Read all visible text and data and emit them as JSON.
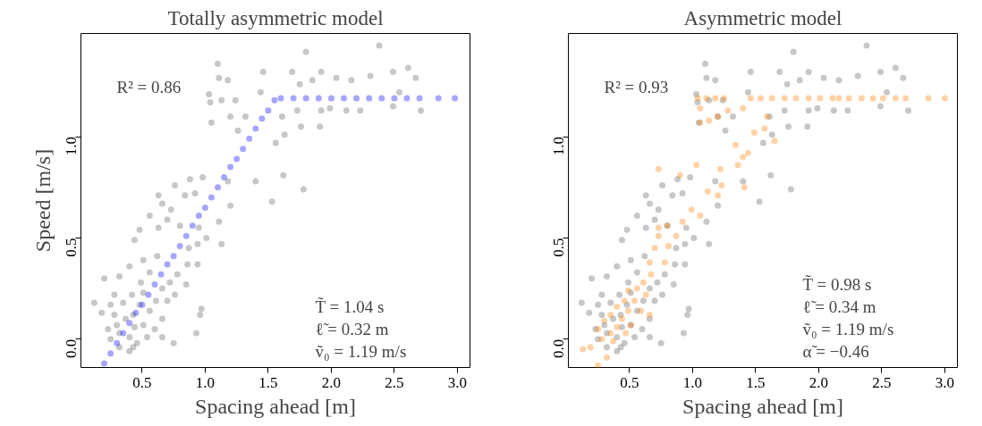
{
  "chart_data": [
    {
      "type": "scatter",
      "title": "Totally asymmetric model",
      "xlabel": "Spacing ahead [m]",
      "ylabel": "Speed [m/s]",
      "xlim": [
        0.015,
        3.1
      ],
      "ylim": [
        -0.14,
        1.51
      ],
      "xticks": [
        {
          "value": 0.5,
          "label": "0.5"
        },
        {
          "value": 1.0,
          "label": "1.0"
        },
        {
          "value": 1.5,
          "label": "1.5"
        },
        {
          "value": 2.0,
          "label": "2.0"
        },
        {
          "value": 2.5,
          "label": "2.5"
        },
        {
          "value": 3.0,
          "label": "3.0"
        }
      ],
      "yticks": [
        {
          "value": 0.0,
          "label": "0.0"
        },
        {
          "value": 0.5,
          "label": "0.5"
        },
        {
          "value": 1.0,
          "label": "1.0"
        }
      ],
      "grid": false,
      "marker": "circle",
      "annotations": [
        "R² = 0.86",
        "T̃ = 1.04 s",
        "ℓ̃ = 0.32 m",
        "ṽ₀ = 1.19 m/s"
      ],
      "series": [
        {
          "color": "#000000",
          "x": [
            1.1,
            1.8,
            2.38,
            1.46,
            1.69,
            1.92,
            2.31,
            2.61,
            2.67,
            1.11,
            1.18,
            1.03,
            1.04,
            1.13,
            1.24,
            1.44,
            1.75,
            1.85,
            2.04,
            2.16,
            2.49,
            2.54,
            2.71,
            2.49,
            2.23,
            2.12,
            1.99,
            1.92,
            1.73,
            1.61,
            1.76,
            1.91,
            1.32,
            1.2,
            1.05,
            1.26,
            1.56,
            1.63,
            1.62,
            1.78,
            1.53,
            1.4,
            1.2,
            1.18,
            0.88,
            0.98,
            0.92,
            0.84,
            0.76,
            0.63,
            0.66,
            0.73,
            0.56,
            0.7,
            0.8,
            0.63,
            0.48,
            0.44,
            1.01,
            1.11,
            1.13,
            0.95,
            0.94,
            0.87,
            0.94,
            0.86,
            0.78,
            0.85,
            0.72,
            0.76,
            0.62,
            0.51,
            0.4,
            0.32,
            0.2,
            0.12,
            0.18,
            0.25,
            0.28,
            0.35,
            0.42,
            0.49,
            0.56,
            0.66,
            0.7,
            0.66,
            0.56,
            0.48,
            0.43,
            0.37,
            0.3,
            0.23,
            0.25,
            0.32,
            0.4,
            0.44,
            0.51,
            0.6,
            0.66,
            0.75,
            0.54,
            0.46,
            0.4,
            0.32,
            0.43,
            0.97,
            0.96,
            0.93,
            0.51,
            0.61,
            0.28
          ],
          "values": [
            1.36,
            1.42,
            1.45,
            1.32,
            1.32,
            1.32,
            1.3,
            1.34,
            1.29,
            1.29,
            1.28,
            1.21,
            1.17,
            1.18,
            1.18,
            1.22,
            1.26,
            1.28,
            1.29,
            1.28,
            1.32,
            1.22,
            1.13,
            1.15,
            1.13,
            1.13,
            1.14,
            1.13,
            1.13,
            1.1,
            1.05,
            1.05,
            1.1,
            1.1,
            1.07,
            1.03,
            0.97,
            1.01,
            0.81,
            0.74,
            0.68,
            0.78,
            0.66,
            0.78,
            0.79,
            0.8,
            0.72,
            0.71,
            0.76,
            0.71,
            0.67,
            0.64,
            0.61,
            0.59,
            0.56,
            0.55,
            0.54,
            0.49,
            0.5,
            0.58,
            0.47,
            0.55,
            0.47,
            0.45,
            0.37,
            0.37,
            0.32,
            0.27,
            0.28,
            0.22,
            0.41,
            0.39,
            0.36,
            0.31,
            0.3,
            0.18,
            0.13,
            0.17,
            0.12,
            0.18,
            0.22,
            0.28,
            0.33,
            0.25,
            0.19,
            0.1,
            0.14,
            0.17,
            0.12,
            0.1,
            0.07,
            0.05,
            0.0,
            0.03,
            0.01,
            0.06,
            0.07,
            0.05,
            0.01,
            -0.02,
            0.01,
            -0.02,
            -0.06,
            -0.04,
            -0.04,
            0.15,
            0.12,
            0.03,
            0.23,
            0.19,
            0.22
          ]
        },
        {
          "color": "#0000ff",
          "x": [
            0.2,
            0.25,
            0.3,
            0.35,
            0.4,
            0.45,
            0.5,
            0.55,
            0.6,
            0.65,
            0.7,
            0.75,
            0.8,
            0.85,
            0.9,
            0.95,
            1.0,
            1.05,
            1.1,
            1.15,
            1.2,
            1.25,
            1.3,
            1.35,
            1.4,
            1.45,
            1.5,
            1.55,
            1.6,
            1.7,
            1.8,
            1.9,
            2.0,
            2.1,
            2.2,
            2.3,
            2.4,
            2.5,
            2.6,
            2.7,
            2.85,
            2.98
          ],
          "values": [
            -0.12,
            -0.07,
            -0.02,
            0.03,
            0.08,
            0.13,
            0.17,
            0.22,
            0.27,
            0.32,
            0.37,
            0.41,
            0.46,
            0.51,
            0.56,
            0.61,
            0.65,
            0.7,
            0.75,
            0.8,
            0.85,
            0.89,
            0.94,
            0.99,
            1.04,
            1.09,
            1.13,
            1.18,
            1.19,
            1.19,
            1.19,
            1.19,
            1.19,
            1.19,
            1.19,
            1.19,
            1.19,
            1.19,
            1.19,
            1.19,
            1.19,
            1.19
          ]
        }
      ]
    },
    {
      "type": "scatter",
      "title": "Asymmetric model",
      "xlabel": "Spacing ahead [m]",
      "xlim": [
        0.015,
        3.1
      ],
      "ylim": [
        -0.14,
        1.51
      ],
      "xticks": [
        {
          "value": 0.5,
          "label": "0.5"
        },
        {
          "value": 1.0,
          "label": "1.0"
        },
        {
          "value": 1.5,
          "label": "1.5"
        },
        {
          "value": 2.0,
          "label": "2.0"
        },
        {
          "value": 2.5,
          "label": "2.5"
        },
        {
          "value": 3.0,
          "label": "3.0"
        }
      ],
      "yticks": [
        {
          "value": 0.0,
          "label": "0.0"
        },
        {
          "value": 0.5,
          "label": "0.5"
        },
        {
          "value": 1.0,
          "label": "1.0"
        }
      ],
      "grid": false,
      "marker": "circle",
      "annotations": [
        "R² = 0.93",
        "T̃ = 0.98 s",
        "ℓ̃ = 0.34 m",
        "ṽ₀ = 1.19 m/s",
        "α̃ = −0.46"
      ],
      "series": [
        {
          "color": "#000000",
          "x": [
            1.1,
            1.8,
            2.38,
            1.46,
            1.69,
            1.92,
            2.31,
            2.61,
            2.67,
            1.11,
            1.18,
            1.03,
            1.04,
            1.13,
            1.24,
            1.44,
            1.75,
            1.85,
            2.04,
            2.16,
            2.49,
            2.54,
            2.71,
            2.49,
            2.23,
            2.12,
            1.99,
            1.92,
            1.73,
            1.61,
            1.76,
            1.91,
            1.32,
            1.2,
            1.05,
            1.26,
            1.56,
            1.63,
            1.62,
            1.78,
            1.53,
            1.4,
            1.2,
            1.18,
            0.88,
            0.98,
            0.92,
            0.84,
            0.76,
            0.63,
            0.66,
            0.73,
            0.56,
            0.7,
            0.8,
            0.63,
            0.48,
            0.44,
            1.01,
            1.11,
            1.13,
            0.95,
            0.94,
            0.87,
            0.94,
            0.86,
            0.78,
            0.85,
            0.72,
            0.76,
            0.62,
            0.51,
            0.4,
            0.32,
            0.2,
            0.12,
            0.18,
            0.25,
            0.28,
            0.35,
            0.42,
            0.49,
            0.56,
            0.66,
            0.7,
            0.66,
            0.56,
            0.48,
            0.43,
            0.37,
            0.3,
            0.23,
            0.25,
            0.32,
            0.4,
            0.44,
            0.51,
            0.6,
            0.66,
            0.75,
            0.54,
            0.46,
            0.4,
            0.32,
            0.43,
            0.97,
            0.96,
            0.93,
            0.51,
            0.61,
            0.28
          ],
          "values": [
            1.36,
            1.42,
            1.45,
            1.32,
            1.32,
            1.32,
            1.3,
            1.34,
            1.29,
            1.29,
            1.28,
            1.21,
            1.17,
            1.18,
            1.18,
            1.22,
            1.26,
            1.28,
            1.29,
            1.28,
            1.32,
            1.22,
            1.13,
            1.15,
            1.13,
            1.13,
            1.14,
            1.13,
            1.13,
            1.1,
            1.05,
            1.05,
            1.1,
            1.1,
            1.07,
            1.03,
            0.97,
            1.01,
            0.81,
            0.74,
            0.68,
            0.78,
            0.66,
            0.78,
            0.79,
            0.8,
            0.72,
            0.71,
            0.76,
            0.71,
            0.67,
            0.64,
            0.61,
            0.59,
            0.56,
            0.55,
            0.54,
            0.49,
            0.5,
            0.58,
            0.47,
            0.55,
            0.47,
            0.45,
            0.37,
            0.37,
            0.32,
            0.27,
            0.28,
            0.22,
            0.41,
            0.39,
            0.36,
            0.31,
            0.3,
            0.18,
            0.13,
            0.17,
            0.12,
            0.18,
            0.22,
            0.28,
            0.33,
            0.25,
            0.19,
            0.1,
            0.14,
            0.17,
            0.12,
            0.1,
            0.07,
            0.05,
            0.0,
            0.03,
            0.01,
            0.06,
            0.07,
            0.05,
            0.01,
            -0.02,
            0.01,
            -0.02,
            -0.06,
            -0.04,
            -0.04,
            0.15,
            0.12,
            0.03,
            0.23,
            0.19,
            0.22
          ]
        },
        {
          "color": "#ff7f00",
          "x": [
            1.04,
            1.11,
            1.18,
            1.25,
            1.46,
            1.54,
            1.63,
            1.73,
            1.82,
            1.92,
            2.01,
            2.11,
            2.16,
            2.24,
            2.34,
            2.43,
            2.51,
            2.61,
            2.69,
            2.87,
            3.0,
            1.06,
            1.13,
            1.2,
            1.06,
            1.28,
            1.4,
            1.59,
            1.49,
            1.57,
            1.65,
            1.34,
            1.44,
            1.4,
            1.36,
            1.22,
            1.23,
            1.41,
            1.03,
            0.9,
            0.73,
            1.12,
            1.2,
            0.99,
            1.06,
            0.92,
            0.8,
            0.73,
            0.87,
            0.7,
            0.81,
            0.78,
            0.66,
            0.67,
            0.61,
            0.56,
            0.49,
            0.63,
            0.46,
            0.54,
            0.4,
            0.49,
            0.59,
            0.35,
            0.44,
            0.3,
            0.4,
            0.51,
            0.25,
            0.35,
            0.47,
            0.28,
            0.37,
            0.19,
            0.13,
            0.32,
            0.25,
            0.66,
            0.73
          ],
          "values": [
            1.19,
            1.19,
            1.19,
            1.19,
            1.19,
            1.19,
            1.19,
            1.19,
            1.19,
            1.19,
            1.19,
            1.19,
            1.19,
            1.19,
            1.19,
            1.19,
            1.19,
            1.19,
            1.19,
            1.19,
            1.19,
            1.14,
            1.08,
            1.1,
            1.07,
            1.13,
            1.14,
            1.1,
            1.02,
            1.04,
            0.98,
            0.96,
            0.92,
            0.9,
            0.86,
            0.84,
            0.76,
            0.75,
            0.86,
            0.81,
            0.84,
            0.73,
            0.71,
            0.64,
            0.61,
            0.58,
            0.56,
            0.51,
            0.51,
            0.45,
            0.46,
            0.38,
            0.38,
            0.32,
            0.28,
            0.25,
            0.24,
            0.22,
            0.19,
            0.19,
            0.16,
            0.14,
            0.14,
            0.12,
            0.1,
            0.09,
            0.06,
            0.07,
            0.05,
            0.03,
            0.03,
            0.0,
            -0.01,
            -0.04,
            -0.05,
            -0.09,
            -0.13,
            0.12,
            0.55
          ]
        }
      ]
    }
  ]
}
